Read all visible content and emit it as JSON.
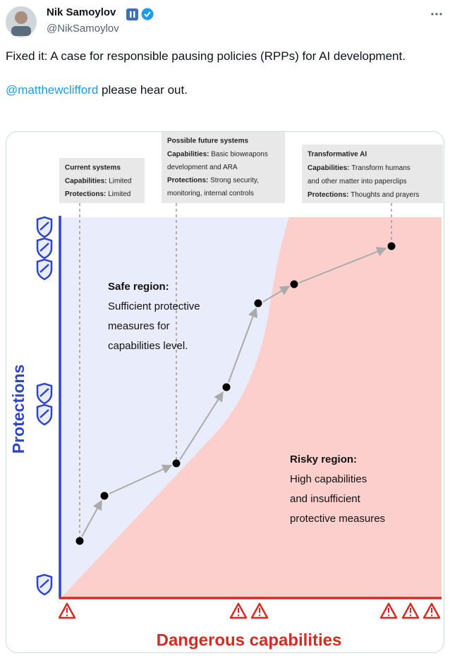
{
  "author": {
    "name": "Nik Samoylov",
    "handle": "@NikSamoylov"
  },
  "tweet": {
    "text": "Fixed it: A case for responsible pausing policies (RPPs) for AI development.",
    "mention": "@matthewclifford",
    "after_mention": " please hear out."
  },
  "diagram": {
    "y_axis_label": "Protections",
    "x_axis_label": "Dangerous capabilities",
    "callouts": [
      {
        "title": "Current systems",
        "lines": [
          {
            "label": "Capabilities:",
            "text": "Limited"
          },
          {
            "label": "Protections:",
            "text": "Limited"
          }
        ]
      },
      {
        "title": "Possible future systems",
        "lines": [
          {
            "label": "Capabilities:",
            "text": "Basic bioweapons"
          },
          {
            "text": "development and ARA"
          },
          {
            "label": "Protections:",
            "text": "Strong security,"
          },
          {
            "text": "monitoring, internal controls"
          }
        ]
      },
      {
        "title": "Transformative AI",
        "lines": [
          {
            "label": "Capabilities:",
            "text": "Transform humans"
          },
          {
            "text": "and other matter into paperclips"
          },
          {
            "label": "Protections:",
            "text": "Thoughts and prayers"
          }
        ]
      }
    ],
    "regions": [
      {
        "title": "Safe region:",
        "lines": [
          "Sufficient protective",
          "measures for",
          "capabilities level."
        ]
      },
      {
        "title": "Risky region:",
        "lines": [
          "High capabilities",
          "and insufficient",
          "protective measures"
        ]
      }
    ]
  }
}
